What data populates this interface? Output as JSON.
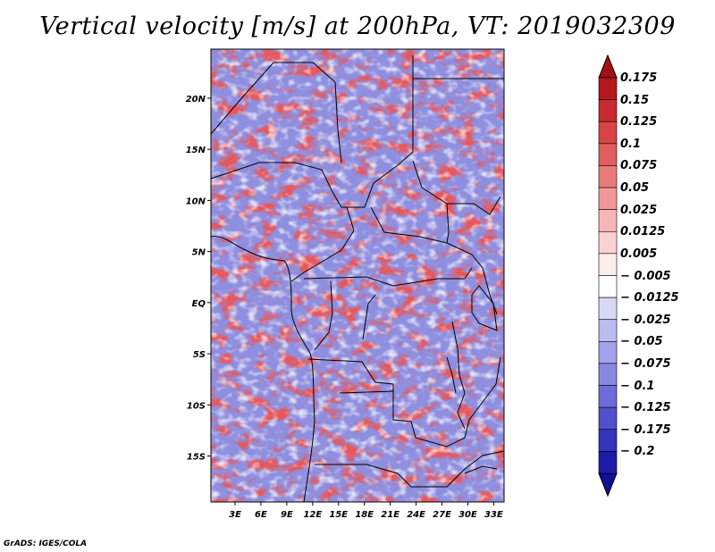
{
  "title": "Vertical velocity [m/s] at 200hPa, VT: 2019032309",
  "credit": "GrADS: IGES/COLA",
  "map": {
    "lat_labels": [
      "20N",
      "15N",
      "10N",
      "5N",
      "EQ",
      "5S",
      "10S",
      "15S"
    ],
    "lon_labels": [
      "3E",
      "6E",
      "9E",
      "12E",
      "15E",
      "18E",
      "21E",
      "24E",
      "27E",
      "30E",
      "33E"
    ],
    "lat_values": [
      20,
      15,
      10,
      5,
      0,
      -5,
      -10,
      -15
    ],
    "lon_values": [
      3,
      6,
      9,
      12,
      15,
      18,
      21,
      24,
      27,
      30,
      33
    ],
    "lat_range": [
      -19.5,
      24.8
    ],
    "lon_range": [
      0.2,
      34.2
    ]
  },
  "colorbar": {
    "labels": [
      "0.175",
      "0.15",
      "0.125",
      "0.1",
      "0.075",
      "0.05",
      "0.025",
      "0.0125",
      "0.005",
      "− 0.005",
      "− 0.0125",
      "− 0.025",
      "− 0.05",
      "− 0.075",
      "− 0.1",
      "− 0.125",
      "− 0.175",
      "− 0.2"
    ],
    "colors": [
      "#a01214",
      "#b5171c",
      "#c82a2e",
      "#d84446",
      "#e25e5e",
      "#ea7a7a",
      "#f19898",
      "#f6b6b6",
      "#fbd2d2",
      "#fdeded",
      "#ffffff",
      "#d8d8f6",
      "#bcbcf0",
      "#a2a2ea",
      "#8888e2",
      "#6c6cd8",
      "#5050cc",
      "#3434bc",
      "#1c1ca8",
      "#101090"
    ]
  }
}
